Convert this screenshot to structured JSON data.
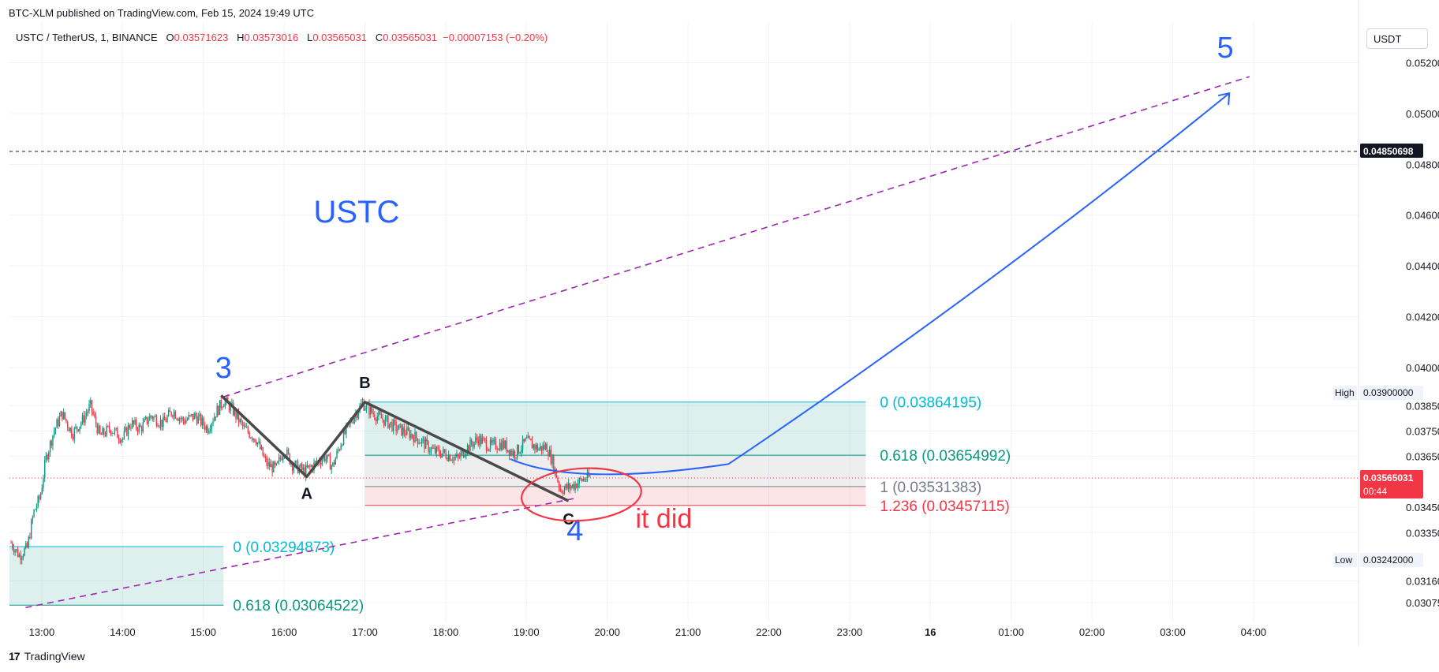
{
  "header": {
    "caption": "BTC-XLM published on TradingView.com, Feb 15, 2024 19:49 UTC",
    "symbol": "USTC / TetherUS, 1, BINANCE",
    "ohlc": {
      "o_label": "O",
      "o": "0.03571623",
      "h_label": "H",
      "h": "0.03573016",
      "l_label": "L",
      "l": "0.03565031",
      "c_label": "C",
      "c": "0.03565031",
      "change": "−0.00007153 (−0.20%)"
    },
    "currency_button": "USDT"
  },
  "footer": {
    "logo": "17",
    "brand": "TradingView"
  },
  "colors": {
    "up": "#089981",
    "down": "#f23645",
    "wave_blue": "#2962ff",
    "channel": "#9c27b0",
    "fib_teal": "#00bcd4",
    "fib_green": "#089981",
    "fib_gray": "#787b86",
    "fib_red": "#f23645"
  },
  "chart_data": {
    "type": "candlestick",
    "title": "USTC",
    "y_axis": {
      "range": [
        0.03,
        0.0536
      ],
      "ticks": [
        "0.05200000",
        "0.05000000",
        "0.04800000",
        "0.04600000",
        "0.04400000",
        "0.04200000",
        "0.04000000",
        "0.03850000",
        "0.03750000",
        "0.03650000",
        "0.03450000",
        "0.03350000",
        "0.03160000",
        "0.03075000"
      ],
      "tick_values": [
        0.052,
        0.05,
        0.048,
        0.046,
        0.044,
        0.042,
        0.04,
        0.0385,
        0.0375,
        0.0365,
        0.0345,
        0.0335,
        0.0316,
        0.03075
      ]
    },
    "x_axis": {
      "labels": [
        "13:00",
        "14:00",
        "15:00",
        "16:00",
        "17:00",
        "18:00",
        "19:00",
        "20:00",
        "21:00",
        "22:00",
        "23:00",
        "16",
        "01:00",
        "02:00",
        "03:00",
        "04:00"
      ],
      "label_hours": [
        13,
        14,
        15,
        16,
        17,
        18,
        19,
        20,
        21,
        22,
        23,
        24,
        25,
        26,
        27,
        28
      ],
      "range_hours": [
        12.6,
        29.3
      ]
    },
    "price_tags": {
      "dashed_level": {
        "value": 0.04850698,
        "label": "0.04850698"
      },
      "current": {
        "value": 0.03565031,
        "label": "0.03565031",
        "countdown": "00:44"
      },
      "high": {
        "label": "High",
        "value": 0.039,
        "text": "0.03900000"
      },
      "low": {
        "label": "Low",
        "value": 0.03242,
        "text": "0.03242000"
      }
    },
    "candles_path": [
      [
        12.62,
        0.0331
      ],
      [
        12.72,
        0.0326
      ],
      [
        12.82,
        0.0329
      ],
      [
        12.9,
        0.0343
      ],
      [
        12.98,
        0.0349
      ],
      [
        13.05,
        0.0364
      ],
      [
        13.15,
        0.0375
      ],
      [
        13.25,
        0.0382
      ],
      [
        13.38,
        0.0374
      ],
      [
        13.5,
        0.0379
      ],
      [
        13.6,
        0.0385
      ],
      [
        13.72,
        0.0373
      ],
      [
        13.85,
        0.0376
      ],
      [
        14.0,
        0.0372
      ],
      [
        14.1,
        0.0378
      ],
      [
        14.22,
        0.0376
      ],
      [
        14.35,
        0.0381
      ],
      [
        14.5,
        0.0378
      ],
      [
        14.62,
        0.0383
      ],
      [
        14.75,
        0.0379
      ],
      [
        14.9,
        0.0381
      ],
      [
        15.05,
        0.0376
      ],
      [
        15.15,
        0.0382
      ],
      [
        15.25,
        0.0387
      ],
      [
        15.35,
        0.0384
      ],
      [
        15.5,
        0.0376
      ],
      [
        15.65,
        0.0372
      ],
      [
        15.78,
        0.0362
      ],
      [
        15.9,
        0.036
      ],
      [
        16.0,
        0.0368
      ],
      [
        16.1,
        0.0362
      ],
      [
        16.25,
        0.0359
      ],
      [
        16.38,
        0.0362
      ],
      [
        16.5,
        0.0365
      ],
      [
        16.6,
        0.0361
      ],
      [
        16.72,
        0.0372
      ],
      [
        16.85,
        0.038
      ],
      [
        16.97,
        0.0386
      ],
      [
        17.1,
        0.0382
      ],
      [
        17.25,
        0.0379
      ],
      [
        17.4,
        0.0376
      ],
      [
        17.55,
        0.0374
      ],
      [
        17.7,
        0.0371
      ],
      [
        17.85,
        0.0367
      ],
      [
        18.0,
        0.0366
      ],
      [
        18.15,
        0.0364
      ],
      [
        18.25,
        0.0368
      ],
      [
        18.4,
        0.0372
      ],
      [
        18.55,
        0.0369
      ],
      [
        18.7,
        0.037
      ],
      [
        18.85,
        0.0366
      ],
      [
        19.0,
        0.0371
      ],
      [
        19.15,
        0.0368
      ],
      [
        19.25,
        0.0369
      ],
      [
        19.32,
        0.0363
      ],
      [
        19.42,
        0.0352
      ],
      [
        19.55,
        0.0353
      ],
      [
        19.7,
        0.0356
      ],
      [
        19.8,
        0.0357
      ]
    ],
    "overlays": {
      "wave_labels": [
        {
          "text": "3",
          "t": 15.25,
          "v": 0.0396
        },
        {
          "text": "5",
          "t": 27.65,
          "v": 0.0522
        },
        {
          "text": "4",
          "t": 19.6,
          "v": 0.0332
        }
      ],
      "abc_points": [
        {
          "label": "A",
          "t": 16.28,
          "v": 0.03564
        },
        {
          "label": "B",
          "t": 17.0,
          "v": 0.03864
        },
        {
          "label": "C",
          "t": 19.52,
          "v": 0.03475
        }
      ],
      "abc_line": [
        [
          15.22,
          0.0389
        ],
        [
          16.28,
          0.0357
        ],
        [
          17.0,
          0.03864
        ],
        [
          19.52,
          0.03475
        ]
      ],
      "channel_upper": [
        [
          15.25,
          0.03885
        ],
        [
          27.95,
          0.05145
        ]
      ],
      "channel_lower": [
        [
          12.8,
          0.03055
        ],
        [
          19.6,
          0.03485
        ]
      ],
      "fib_right": {
        "t_start": 17.0,
        "t_end": 23.2,
        "levels": [
          {
            "ratio": "0",
            "value": 0.03864195,
            "text": "0 (0.03864195)"
          },
          {
            "ratio": "0.618",
            "value": 0.03654992,
            "text": "0.618 (0.03654992)"
          },
          {
            "ratio": "1",
            "value": 0.03531383,
            "text": "1 (0.03531383)"
          },
          {
            "ratio": "1.236",
            "value": 0.03457115,
            "text": "1.236 (0.03457115)"
          }
        ]
      },
      "fib_left": {
        "t_start": 12.6,
        "t_end": 15.25,
        "levels": [
          {
            "ratio": "0",
            "value": 0.03294873,
            "text": "0 (0.03294873)"
          },
          {
            "ratio": "0.618",
            "value": 0.03064522,
            "text": "0.618 (0.03064522)"
          }
        ]
      },
      "projection_curve": [
        [
          18.8,
          0.0364
        ],
        [
          19.6,
          0.0353
        ],
        [
          21.5,
          0.0362
        ],
        [
          24.5,
          0.0425
        ],
        [
          27.7,
          0.0508
        ]
      ],
      "annotation": {
        "text": "it did",
        "t": 20.7,
        "v": 0.0337
      },
      "circle_center": [
        19.68,
        0.035
      ]
    }
  }
}
